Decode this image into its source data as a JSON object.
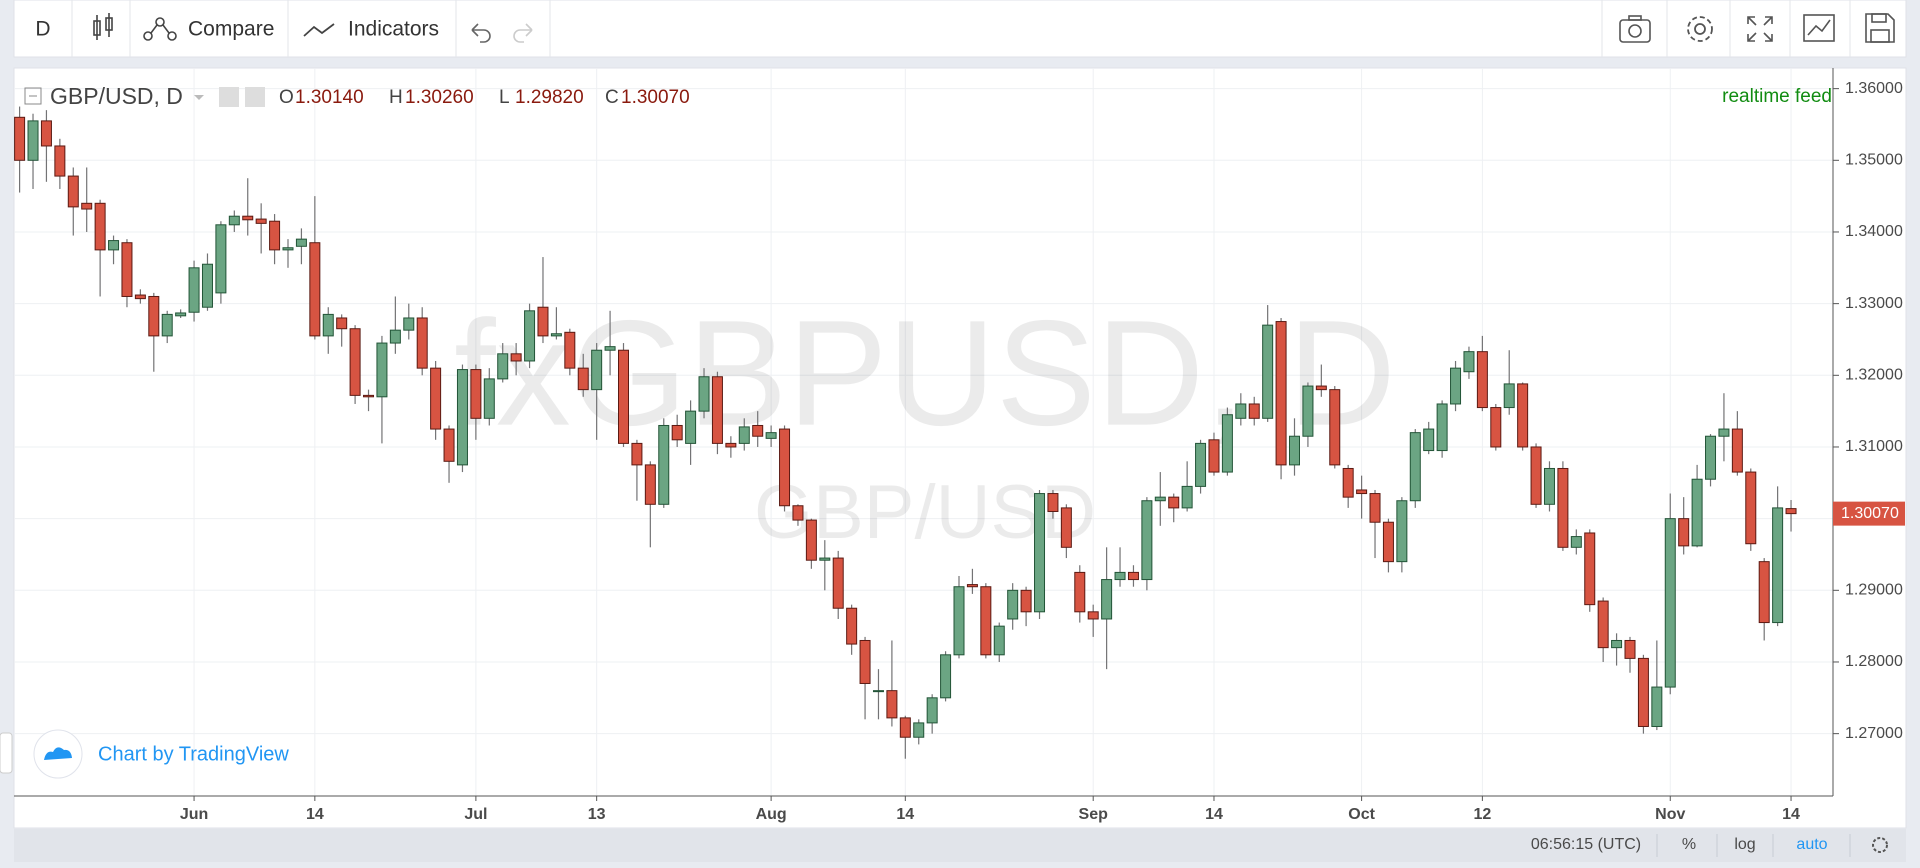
{
  "toolbar": {
    "interval": "D",
    "compare": "Compare",
    "indicators": "Indicators"
  },
  "legend": {
    "symbol": "GBP/USD, D",
    "fields": [
      {
        "label": "O",
        "value": "1.30140"
      },
      {
        "label": "H",
        "value": "1.30260"
      },
      {
        "label": "L",
        "value": "1.29820"
      },
      {
        "label": "C",
        "value": "1.30070"
      }
    ]
  },
  "feed": "realtime feed",
  "watermark": {
    "main": "fxGBPUSD, D",
    "sub": "GBP/USD"
  },
  "branding": "Chart by TradingView",
  "status_bar": {
    "time": "06:56:15 (UTC)",
    "percent": "%",
    "log": "log",
    "auto": "auto"
  },
  "chart_data": {
    "type": "candlestick",
    "up_color": "#6ba583",
    "up_border": "#225437",
    "down_color": "#d75442",
    "down_border": "#5b1a13",
    "grid": true,
    "log_scale": false,
    "ylim": [
      1.2613,
      1.3626
    ],
    "yticks": [
      {
        "value": 1.27,
        "label": "1.27000"
      },
      {
        "value": 1.28,
        "label": "1.28000"
      },
      {
        "value": 1.29,
        "label": "1.29000"
      },
      {
        "value": 1.3,
        "label": "1.30000"
      },
      {
        "value": 1.31,
        "label": "1.31000"
      },
      {
        "value": 1.32,
        "label": "1.32000"
      },
      {
        "value": 1.33,
        "label": "1.33000"
      },
      {
        "value": 1.34,
        "label": "1.34000"
      },
      {
        "value": 1.35,
        "label": "1.35000"
      },
      {
        "value": 1.36,
        "label": "1.36000"
      }
    ],
    "last_price_label": "1.30070",
    "categories": [
      null,
      null,
      null,
      null,
      null,
      null,
      null,
      null,
      null,
      null,
      null,
      null,
      null,
      "Jun",
      null,
      null,
      null,
      null,
      null,
      null,
      null,
      null,
      "14",
      null,
      null,
      null,
      null,
      null,
      null,
      null,
      null,
      null,
      null,
      null,
      "Jul",
      null,
      null,
      null,
      null,
      null,
      null,
      null,
      null,
      "13",
      null,
      null,
      null,
      null,
      null,
      null,
      null,
      null,
      null,
      null,
      null,
      null,
      "Aug",
      null,
      null,
      null,
      null,
      null,
      null,
      null,
      null,
      null,
      "14",
      null,
      null,
      null,
      null,
      null,
      null,
      null,
      null,
      null,
      null,
      null,
      null,
      null,
      "Sep",
      null,
      null,
      null,
      null,
      null,
      null,
      null,
      null,
      "14",
      null,
      null,
      null,
      null,
      null,
      null,
      null,
      null,
      null,
      null,
      "Oct",
      null,
      null,
      null,
      null,
      null,
      null,
      null,
      null,
      "12",
      null,
      null,
      null,
      null,
      null,
      null,
      null,
      null,
      null,
      null,
      null,
      null,
      null,
      "Nov",
      null,
      null,
      null,
      null,
      null,
      null,
      null,
      null,
      "14"
    ],
    "open": [
      1.356,
      1.35,
      1.3555,
      1.352,
      1.3478,
      1.344,
      1.344,
      1.3375,
      1.3385,
      1.3312,
      1.331,
      1.3255,
      1.3283,
      1.3288,
      1.3295,
      1.3315,
      1.341,
      1.3422,
      1.3418,
      1.3415,
      1.3375,
      1.338,
      1.3385,
      1.3255,
      1.328,
      1.3265,
      1.3172,
      1.317,
      1.3245,
      1.3263,
      1.328,
      1.321,
      1.3125,
      1.3075,
      1.3208,
      1.314,
      1.3195,
      1.323,
      1.322,
      1.3295,
      1.3255,
      1.326,
      1.321,
      1.318,
      1.3235,
      1.3235,
      1.3105,
      1.3075,
      1.302,
      1.313,
      1.3105,
      1.315,
      1.3198,
      1.3105,
      1.3105,
      1.313,
      1.3112,
      1.3125,
      1.3018,
      1.2998,
      1.2942,
      1.2945,
      1.2875,
      1.283,
      1.276,
      1.276,
      1.2722,
      1.2695,
      1.2715,
      1.275,
      1.281,
      1.2908,
      1.2905,
      1.281,
      1.286,
      1.29,
      1.287,
      1.3035,
      1.3015,
      1.2925,
      1.287,
      1.286,
      1.2915,
      1.2925,
      1.2915,
      1.3025,
      1.303,
      1.3015,
      1.3045,
      1.311,
      1.3065,
      1.314,
      1.316,
      1.314,
      1.3275,
      1.3075,
      1.3115,
      1.3185,
      1.318,
      1.307,
      1.304,
      1.3035,
      1.2995,
      1.294,
      1.3025,
      1.3095,
      1.3095,
      1.316,
      1.3205,
      1.3233,
      1.3155,
      1.3155,
      1.3188,
      1.31,
      1.302,
      1.307,
      1.296,
      1.298,
      1.2885,
      1.282,
      1.283,
      1.2805,
      1.271,
      1.2765,
      1.3,
      1.2962,
      1.3055,
      1.3115,
      1.3125,
      1.3065,
      1.294,
      1.2855,
      1.3014
    ],
    "high": [
      1.3575,
      1.3565,
      1.357,
      1.353,
      1.349,
      1.349,
      1.3445,
      1.3395,
      1.339,
      1.332,
      1.3315,
      1.329,
      1.3292,
      1.336,
      1.337,
      1.3415,
      1.343,
      1.3475,
      1.344,
      1.3425,
      1.339,
      1.3405,
      1.345,
      1.3295,
      1.3285,
      1.327,
      1.318,
      1.3255,
      1.331,
      1.33,
      1.3295,
      1.322,
      1.313,
      1.3215,
      1.3215,
      1.321,
      1.3245,
      1.3245,
      1.33,
      1.3365,
      1.3295,
      1.3265,
      1.323,
      1.3245,
      1.329,
      1.3245,
      1.311,
      1.308,
      1.314,
      1.3145,
      1.3165,
      1.321,
      1.3205,
      1.3115,
      1.314,
      1.315,
      1.313,
      1.313,
      1.302,
      1.3,
      1.297,
      1.2955,
      1.288,
      1.2835,
      1.279,
      1.283,
      1.2725,
      1.272,
      1.2755,
      1.2815,
      1.292,
      1.293,
      1.291,
      1.2855,
      1.291,
      1.2905,
      1.304,
      1.304,
      1.302,
      1.2935,
      1.288,
      1.296,
      1.296,
      1.2935,
      1.303,
      1.3065,
      1.3035,
      1.308,
      1.311,
      1.312,
      1.3155,
      1.3175,
      1.317,
      1.3298,
      1.328,
      1.314,
      1.319,
      1.3215,
      1.3185,
      1.3075,
      1.306,
      1.304,
      1.3,
      1.303,
      1.3125,
      1.3135,
      1.3165,
      1.322,
      1.324,
      1.3255,
      1.316,
      1.3235,
      1.319,
      1.3105,
      1.308,
      1.308,
      1.2985,
      1.2985,
      1.289,
      1.284,
      1.2835,
      1.281,
      1.283,
      1.3035,
      1.303,
      1.3075,
      1.3118,
      1.3175,
      1.315,
      1.307,
      1.2945,
      1.3045,
      1.3026
    ],
    "low": [
      1.3455,
      1.346,
      1.347,
      1.346,
      1.3395,
      1.34,
      1.331,
      1.3355,
      1.3295,
      1.33,
      1.3205,
      1.3245,
      1.328,
      1.3275,
      1.329,
      1.33,
      1.34,
      1.3395,
      1.337,
      1.3355,
      1.335,
      1.3355,
      1.325,
      1.323,
      1.324,
      1.316,
      1.315,
      1.3105,
      1.323,
      1.325,
      1.32,
      1.311,
      1.305,
      1.3065,
      1.311,
      1.313,
      1.319,
      1.32,
      1.321,
      1.3245,
      1.325,
      1.32,
      1.317,
      1.311,
      1.32,
      1.31,
      1.3025,
      1.296,
      1.3015,
      1.31,
      1.3075,
      1.314,
      1.309,
      1.3085,
      1.3095,
      1.31,
      1.31,
      1.301,
      1.299,
      1.293,
      1.29,
      1.286,
      1.281,
      1.272,
      1.272,
      1.271,
      1.2665,
      1.2685,
      1.27,
      1.2745,
      1.2805,
      1.2895,
      1.2805,
      1.28,
      1.2845,
      1.285,
      1.286,
      1.3,
      1.2945,
      1.2855,
      1.2835,
      1.279,
      1.2905,
      1.2905,
      1.29,
      1.299,
      1.2995,
      1.301,
      1.3035,
      1.306,
      1.306,
      1.313,
      1.313,
      1.3135,
      1.3055,
      1.306,
      1.31,
      1.317,
      1.307,
      1.3015,
      1.3,
      1.2945,
      1.2925,
      1.2925,
      1.3015,
      1.309,
      1.3085,
      1.315,
      1.3195,
      1.315,
      1.3095,
      1.3145,
      1.3095,
      1.3015,
      1.301,
      1.2955,
      1.295,
      1.287,
      1.28,
      1.2795,
      1.2785,
      1.27,
      1.2705,
      1.2755,
      1.295,
      1.296,
      1.3045,
      1.308,
      1.306,
      1.2955,
      1.283,
      1.285,
      1.2982
    ],
    "close": [
      1.35,
      1.3555,
      1.352,
      1.3478,
      1.3435,
      1.3432,
      1.3375,
      1.3388,
      1.331,
      1.3307,
      1.3255,
      1.3285,
      1.3287,
      1.335,
      1.3355,
      1.341,
      1.3422,
      1.3417,
      1.3412,
      1.3375,
      1.3378,
      1.339,
      1.3255,
      1.3285,
      1.3265,
      1.3172,
      1.317,
      1.3245,
      1.3263,
      1.328,
      1.321,
      1.3125,
      1.308,
      1.3208,
      1.314,
      1.3195,
      1.323,
      1.322,
      1.329,
      1.3255,
      1.3258,
      1.321,
      1.318,
      1.3235,
      1.324,
      1.3105,
      1.3075,
      1.302,
      1.313,
      1.311,
      1.315,
      1.3198,
      1.3105,
      1.31,
      1.3128,
      1.3115,
      1.312,
      1.3018,
      1.2998,
      1.2942,
      1.2945,
      1.2875,
      1.2825,
      1.277,
      1.276,
      1.2722,
      1.2695,
      1.2715,
      1.275,
      1.281,
      1.2905,
      1.2905,
      1.281,
      1.285,
      1.29,
      1.287,
      1.3035,
      1.301,
      1.296,
      1.287,
      1.286,
      1.2915,
      1.2925,
      1.2915,
      1.3025,
      1.303,
      1.3015,
      1.3045,
      1.3105,
      1.3065,
      1.3145,
      1.316,
      1.314,
      1.327,
      1.3075,
      1.3115,
      1.3185,
      1.318,
      1.3075,
      1.303,
      1.3035,
      1.2995,
      1.294,
      1.3025,
      1.312,
      1.3125,
      1.316,
      1.321,
      1.3233,
      1.3155,
      1.31,
      1.3188,
      1.31,
      1.302,
      1.307,
      1.296,
      1.2975,
      1.288,
      1.282,
      1.283,
      1.2805,
      1.271,
      1.2765,
      1.3,
      1.2962,
      1.3055,
      1.3115,
      1.3125,
      1.3065,
      1.2965,
      1.2855,
      1.3015,
      1.3007
    ]
  }
}
